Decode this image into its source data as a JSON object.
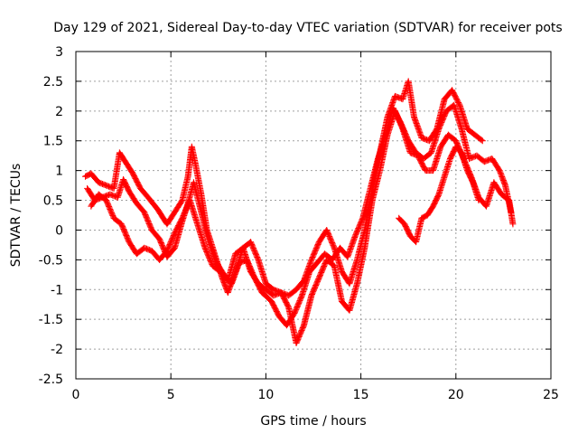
{
  "chart_data": {
    "type": "scatter",
    "title": "Day 129 of 2021, Sidereal Day-to-day VTEC variation (SDTVAR) for receiver pots",
    "xlabel": "GPS time / hours",
    "ylabel": "SDTVAR / TECUs",
    "xlim": [
      0,
      25
    ],
    "ylim": [
      -2.5,
      3
    ],
    "grid": true,
    "marker": "+",
    "xticks": [
      0,
      5,
      10,
      15,
      20,
      25
    ],
    "xtick_labels": [
      "0",
      "5",
      "10",
      "15",
      "20",
      "25"
    ],
    "yticks": [
      -2.5,
      -2,
      -1.5,
      -1,
      -0.5,
      0,
      0.5,
      1,
      1.5,
      2,
      2.5,
      3
    ],
    "ytick_labels": [
      "-2.5",
      "-2",
      "-1.5",
      "-1",
      "-0.5",
      "0",
      "0.5",
      "1",
      "1.5",
      "2",
      "2.5",
      "3"
    ],
    "series": [
      {
        "name": "trace-a",
        "color": "#ff0000",
        "points": [
          [
            0.5,
            0.9
          ],
          [
            0.8,
            0.95
          ],
          [
            1.2,
            0.8
          ],
          [
            1.6,
            0.75
          ],
          [
            2.0,
            0.7
          ],
          [
            2.3,
            1.3
          ],
          [
            2.6,
            1.15
          ],
          [
            3.0,
            0.95
          ],
          [
            3.4,
            0.7
          ],
          [
            3.8,
            0.55
          ],
          [
            4.3,
            0.35
          ],
          [
            4.8,
            0.1
          ],
          [
            5.2,
            0.3
          ],
          [
            5.6,
            0.5
          ],
          [
            5.9,
            0.9
          ],
          [
            6.1,
            1.4
          ],
          [
            6.3,
            1.1
          ],
          [
            6.6,
            0.6
          ],
          [
            6.9,
            0.0
          ],
          [
            7.3,
            -0.4
          ],
          [
            7.7,
            -0.8
          ],
          [
            8.0,
            -1.05
          ],
          [
            8.4,
            -0.7
          ],
          [
            8.8,
            -0.3
          ],
          [
            9.2,
            -0.2
          ],
          [
            9.6,
            -0.5
          ],
          [
            10.0,
            -0.9
          ],
          [
            10.4,
            -1.0
          ],
          [
            10.8,
            -1.05
          ],
          [
            11.2,
            -1.1
          ],
          [
            11.6,
            -1.0
          ],
          [
            12.0,
            -0.85
          ],
          [
            12.4,
            -0.5
          ],
          [
            12.8,
            -0.2
          ],
          [
            13.2,
            0.0
          ],
          [
            13.6,
            -0.3
          ],
          [
            14.0,
            -0.7
          ],
          [
            14.4,
            -0.9
          ],
          [
            14.8,
            -0.5
          ],
          [
            15.2,
            0.0
          ],
          [
            15.6,
            0.7
          ],
          [
            16.0,
            1.3
          ],
          [
            16.4,
            1.9
          ],
          [
            16.8,
            2.25
          ],
          [
            17.2,
            2.2
          ],
          [
            17.5,
            2.5
          ],
          [
            17.8,
            1.9
          ],
          [
            18.2,
            1.55
          ],
          [
            18.6,
            1.5
          ],
          [
            19.0,
            1.7
          ],
          [
            19.4,
            2.2
          ],
          [
            19.8,
            2.35
          ],
          [
            20.2,
            2.1
          ],
          [
            20.6,
            1.7
          ],
          [
            21.0,
            1.6
          ],
          [
            21.4,
            1.5
          ]
        ]
      },
      {
        "name": "trace-b",
        "color": "#ff0000",
        "points": [
          [
            0.6,
            0.7
          ],
          [
            1.0,
            0.5
          ],
          [
            1.4,
            0.55
          ],
          [
            1.8,
            0.6
          ],
          [
            2.2,
            0.55
          ],
          [
            2.5,
            0.85
          ],
          [
            2.8,
            0.65
          ],
          [
            3.2,
            0.45
          ],
          [
            3.6,
            0.3
          ],
          [
            4.0,
            0.0
          ],
          [
            4.4,
            -0.15
          ],
          [
            4.8,
            -0.45
          ],
          [
            5.2,
            -0.3
          ],
          [
            5.6,
            0.15
          ],
          [
            5.9,
            0.45
          ],
          [
            6.2,
            0.8
          ],
          [
            6.6,
            0.3
          ],
          [
            7.0,
            -0.2
          ],
          [
            7.4,
            -0.55
          ],
          [
            7.8,
            -0.75
          ],
          [
            8.2,
            -0.9
          ],
          [
            8.6,
            -0.55
          ],
          [
            9.0,
            -0.5
          ],
          [
            9.4,
            -0.8
          ],
          [
            9.8,
            -1.05
          ],
          [
            10.3,
            -1.2
          ],
          [
            10.7,
            -1.45
          ],
          [
            11.1,
            -1.6
          ],
          [
            11.5,
            -1.4
          ],
          [
            11.9,
            -1.1
          ],
          [
            12.3,
            -0.7
          ],
          [
            12.7,
            -0.55
          ],
          [
            13.1,
            -0.4
          ],
          [
            13.5,
            -0.5
          ],
          [
            13.9,
            -0.3
          ],
          [
            14.3,
            -0.45
          ],
          [
            14.7,
            -0.1
          ],
          [
            15.1,
            0.2
          ],
          [
            15.5,
            0.7
          ],
          [
            15.9,
            1.2
          ],
          [
            16.3,
            1.6
          ],
          [
            16.7,
            2.05
          ],
          [
            17.1,
            1.8
          ],
          [
            17.5,
            1.5
          ],
          [
            17.9,
            1.3
          ],
          [
            18.3,
            1.2
          ],
          [
            18.7,
            1.3
          ],
          [
            19.1,
            1.7
          ],
          [
            19.5,
            2.0
          ],
          [
            19.9,
            2.1
          ],
          [
            20.3,
            1.7
          ],
          [
            20.7,
            1.2
          ],
          [
            21.1,
            1.25
          ],
          [
            21.5,
            1.15
          ],
          [
            21.9,
            1.2
          ],
          [
            22.3,
            1.0
          ],
          [
            22.6,
            0.75
          ],
          [
            22.9,
            0.3
          ]
        ]
      },
      {
        "name": "trace-c",
        "color": "#ff0000",
        "points": [
          [
            0.8,
            0.4
          ],
          [
            1.2,
            0.6
          ],
          [
            1.6,
            0.5
          ],
          [
            2.0,
            0.2
          ],
          [
            2.4,
            0.1
          ],
          [
            2.8,
            -0.2
          ],
          [
            3.2,
            -0.4
          ],
          [
            3.6,
            -0.3
          ],
          [
            4.0,
            -0.35
          ],
          [
            4.4,
            -0.5
          ],
          [
            4.8,
            -0.35
          ],
          [
            5.2,
            -0.05
          ],
          [
            5.6,
            0.2
          ],
          [
            6.0,
            0.5
          ],
          [
            6.4,
            0.1
          ],
          [
            6.8,
            -0.3
          ],
          [
            7.2,
            -0.6
          ],
          [
            7.6,
            -0.7
          ],
          [
            8.0,
            -0.85
          ],
          [
            8.4,
            -0.4
          ],
          [
            8.8,
            -0.3
          ],
          [
            9.2,
            -0.7
          ],
          [
            9.6,
            -0.9
          ],
          [
            10.0,
            -1.0
          ],
          [
            10.4,
            -1.1
          ],
          [
            10.8,
            -1.05
          ],
          [
            11.2,
            -1.3
          ],
          [
            11.6,
            -1.9
          ],
          [
            12.0,
            -1.6
          ],
          [
            12.4,
            -1.1
          ],
          [
            12.8,
            -0.8
          ],
          [
            13.2,
            -0.5
          ],
          [
            13.6,
            -0.6
          ],
          [
            14.0,
            -1.2
          ],
          [
            14.4,
            -1.35
          ],
          [
            14.8,
            -0.9
          ],
          [
            15.2,
            -0.3
          ],
          [
            15.6,
            0.5
          ],
          [
            16.0,
            1.0
          ],
          [
            16.4,
            1.6
          ],
          [
            16.8,
            2.0
          ],
          [
            17.2,
            1.7
          ],
          [
            17.6,
            1.3
          ],
          [
            18.0,
            1.25
          ],
          [
            18.4,
            1.0
          ],
          [
            18.8,
            1.0
          ],
          [
            19.2,
            1.4
          ],
          [
            19.6,
            1.6
          ],
          [
            20.0,
            1.5
          ],
          [
            20.4,
            1.2
          ],
          [
            20.8,
            0.9
          ],
          [
            21.2,
            0.55
          ],
          [
            21.6,
            0.4
          ],
          [
            22.0,
            0.8
          ],
          [
            22.4,
            0.6
          ],
          [
            22.8,
            0.5
          ],
          [
            23.0,
            0.1
          ]
        ]
      },
      {
        "name": "trace-d",
        "color": "#ff0000",
        "points": [
          [
            17.0,
            0.2
          ],
          [
            17.3,
            0.1
          ],
          [
            17.6,
            -0.1
          ],
          [
            17.9,
            -0.2
          ],
          [
            18.2,
            0.2
          ],
          [
            18.5,
            0.25
          ],
          [
            18.8,
            0.4
          ],
          [
            19.1,
            0.6
          ],
          [
            19.4,
            0.9
          ],
          [
            19.7,
            1.2
          ],
          [
            20.0,
            1.4
          ],
          [
            20.3,
            1.3
          ],
          [
            20.6,
            1.0
          ],
          [
            20.9,
            0.8
          ],
          [
            21.2,
            0.5
          ]
        ]
      }
    ]
  }
}
